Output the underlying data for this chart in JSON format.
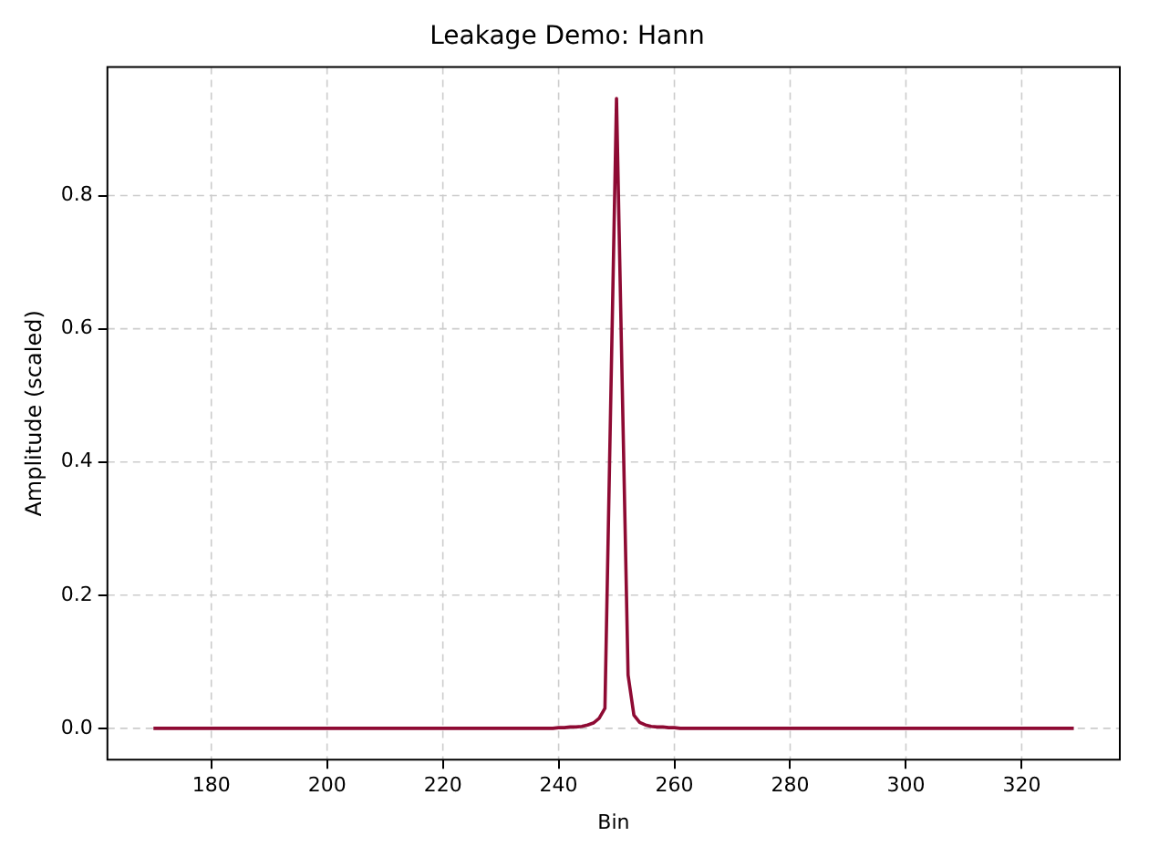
{
  "chart_data": {
    "type": "line",
    "title": "Leakage Demo: Hann",
    "xlabel": "Bin",
    "ylabel": "Amplitude (scaled)",
    "x": [
      170,
      171,
      172,
      173,
      174,
      175,
      176,
      177,
      178,
      179,
      180,
      181,
      182,
      183,
      184,
      185,
      186,
      187,
      188,
      189,
      190,
      191,
      192,
      193,
      194,
      195,
      196,
      197,
      198,
      199,
      200,
      201,
      202,
      203,
      204,
      205,
      206,
      207,
      208,
      209,
      210,
      211,
      212,
      213,
      214,
      215,
      216,
      217,
      218,
      219,
      220,
      221,
      222,
      223,
      224,
      225,
      226,
      227,
      228,
      229,
      230,
      231,
      232,
      233,
      234,
      235,
      236,
      237,
      238,
      239,
      240,
      241,
      242,
      243,
      244,
      245,
      246,
      247,
      248,
      249,
      250,
      251,
      252,
      253,
      254,
      255,
      256,
      257,
      258,
      259,
      260,
      261,
      262,
      263,
      264,
      265,
      266,
      267,
      268,
      269,
      270,
      271,
      272,
      273,
      274,
      275,
      276,
      277,
      278,
      279,
      280,
      281,
      282,
      283,
      284,
      285,
      286,
      287,
      288,
      289,
      290,
      291,
      292,
      293,
      294,
      295,
      296,
      297,
      298,
      299,
      300,
      301,
      302,
      303,
      304,
      305,
      306,
      307,
      308,
      309,
      310,
      311,
      312,
      313,
      314,
      315,
      316,
      317,
      318,
      319,
      320,
      321,
      322,
      323,
      324,
      325,
      326,
      327,
      328,
      329
    ],
    "series": [
      {
        "color": "#8e0a33",
        "values": [
          0,
          0,
          0,
          0,
          0,
          0,
          0,
          0,
          0,
          0,
          0,
          0,
          0,
          0,
          0,
          0,
          0,
          0,
          0,
          0,
          0,
          0,
          0,
          0,
          0,
          0,
          0,
          0,
          0,
          0,
          0,
          0,
          0,
          0,
          0,
          0,
          0,
          0,
          0,
          0,
          0,
          0,
          0,
          0,
          0,
          0,
          0,
          0,
          0,
          0,
          0,
          0,
          0,
          0,
          0,
          0,
          0,
          0,
          0,
          0,
          0,
          0,
          0,
          0,
          0,
          0,
          0,
          0,
          0,
          0,
          0.001,
          0.001,
          0.002,
          0.002,
          0.003,
          0.005,
          0.008,
          0.015,
          0.03,
          0.49,
          0.946,
          0.51,
          0.08,
          0.02,
          0.009,
          0.005,
          0.003,
          0.002,
          0.002,
          0.001,
          0.001,
          0,
          0,
          0,
          0,
          0,
          0,
          0,
          0,
          0,
          0,
          0,
          0,
          0,
          0,
          0,
          0,
          0,
          0,
          0,
          0,
          0,
          0,
          0,
          0,
          0,
          0,
          0,
          0,
          0,
          0,
          0,
          0,
          0,
          0,
          0,
          0,
          0,
          0,
          0,
          0,
          0,
          0,
          0,
          0,
          0,
          0,
          0,
          0,
          0,
          0,
          0,
          0,
          0,
          0,
          0,
          0,
          0,
          0,
          0,
          0,
          0,
          0,
          0,
          0,
          0,
          0,
          0,
          0,
          0
        ]
      }
    ],
    "xlim": [
      162.05,
      336.95
    ],
    "xticks": [
      180,
      200,
      220,
      240,
      260,
      280,
      300,
      320
    ],
    "ylim": [
      -0.047,
      0.993
    ],
    "yticks": [
      {
        "value": 0,
        "label": "0.0"
      },
      {
        "value": 0.2,
        "label": "0.2"
      },
      {
        "value": 0.4,
        "label": "0.4"
      },
      {
        "value": 0.6,
        "label": "0.6"
      },
      {
        "value": 0.8,
        "label": "0.8"
      }
    ],
    "grid": true,
    "legend": false,
    "marker": "none",
    "line_style": "solid"
  }
}
